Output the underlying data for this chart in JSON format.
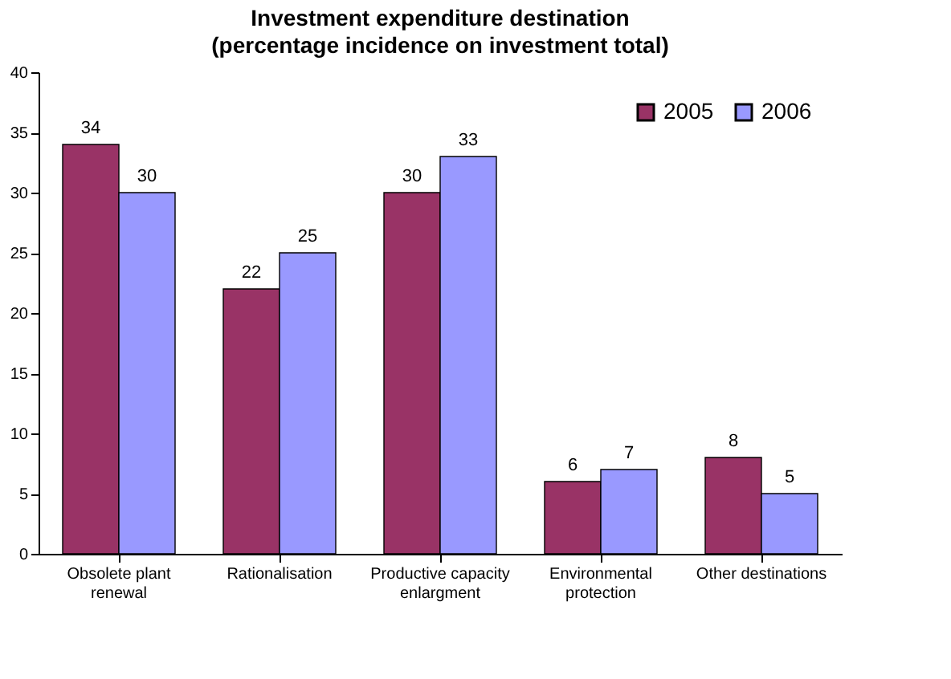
{
  "chart_data": {
    "type": "bar",
    "title": "Investment expenditure destination",
    "subtitle": "(percentage incidence on investment total)",
    "categories": [
      "Obsolete plant renewal",
      "Rationalisation",
      "Productive capacity enlargment",
      "Environmental protection",
      "Other destinations"
    ],
    "series": [
      {
        "name": "2005",
        "color": "#993366",
        "values": [
          34,
          22,
          30,
          6,
          8
        ]
      },
      {
        "name": "2006",
        "color": "#9999ff",
        "values": [
          30,
          25,
          33,
          7,
          5
        ]
      }
    ],
    "ylim": [
      0,
      40
    ],
    "yticks": [
      0,
      5,
      10,
      15,
      20,
      25,
      30,
      35,
      40
    ],
    "grid": false,
    "legend": "top right",
    "data_labels": true
  }
}
